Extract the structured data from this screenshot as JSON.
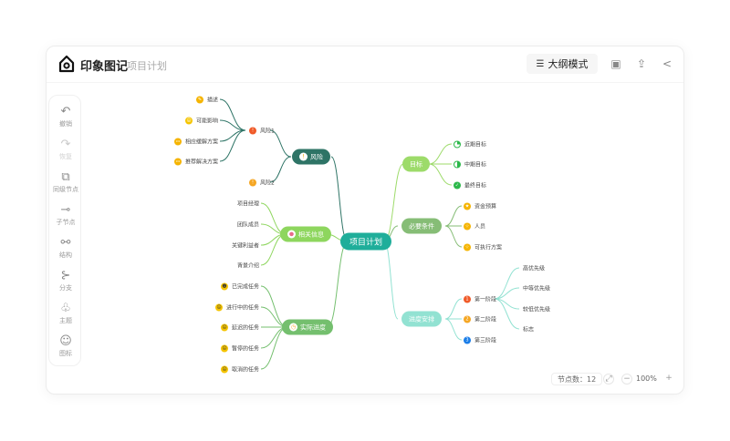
{
  "app": {
    "brand": "印象图记",
    "doc_title": "项目计划"
  },
  "toolbar": {
    "outline_label": "大纲模式",
    "outline_icon": "outline-list-icon",
    "icons": [
      "present-icon",
      "export-icon",
      "share-icon"
    ]
  },
  "sidebar": {
    "items": [
      {
        "label": "撤销",
        "icon": "undo-icon",
        "enabled": true
      },
      {
        "label": "恢复",
        "icon": "redo-icon",
        "enabled": false
      },
      {
        "label": "同级节点",
        "icon": "sibling-node-icon",
        "enabled": true
      },
      {
        "label": "子节点",
        "icon": "child-node-icon",
        "enabled": true
      },
      {
        "label": "结构",
        "icon": "structure-icon",
        "enabled": true
      },
      {
        "label": "分支",
        "icon": "branch-icon",
        "enabled": true
      },
      {
        "label": "主题",
        "icon": "theme-icon",
        "enabled": true
      },
      {
        "label": "图标",
        "icon": "emoji-icon",
        "enabled": true
      }
    ]
  },
  "mindmap": {
    "root": "项目计划",
    "risk": {
      "label": "风险",
      "r1": "风险1",
      "r2": "风险2",
      "r1_children": [
        "描述",
        "可能影响",
        "相应缓解方案",
        "推荐解决方案"
      ]
    },
    "info": {
      "label": "相关信息",
      "children": [
        "项目经理",
        "团队成员",
        "关键利益者",
        "背景介绍"
      ]
    },
    "progress": {
      "label": "实际进度",
      "children": [
        "已完成任务",
        "进行中的任务",
        "延迟的任务",
        "暂停的任务",
        "取消的任务"
      ]
    },
    "goal": {
      "label": "目标",
      "children": [
        "近期目标",
        "中期目标",
        "最终目标"
      ]
    },
    "req": {
      "label": "必要条件",
      "children": [
        "资金预算",
        "人员",
        "可执行方案"
      ]
    },
    "sched": {
      "label": "进度安排",
      "children": [
        "第一阶段",
        "第二阶段",
        "第三阶段"
      ],
      "phase_numbers": [
        "1",
        "2",
        "3"
      ],
      "phase1_children": [
        "高优先级",
        "中等优先级",
        "较低优先级",
        "标志"
      ]
    }
  },
  "colors": {
    "root": "#1fae9a",
    "risk": "#2e7466",
    "info": "#8ed65e",
    "progress": "#74bf6e",
    "goal": "#9ddb6a",
    "req": "#86bd76",
    "sched": "#92e2d2"
  },
  "footer": {
    "node_count_label": "节点数：",
    "node_count": "12",
    "zoom": "100%"
  }
}
